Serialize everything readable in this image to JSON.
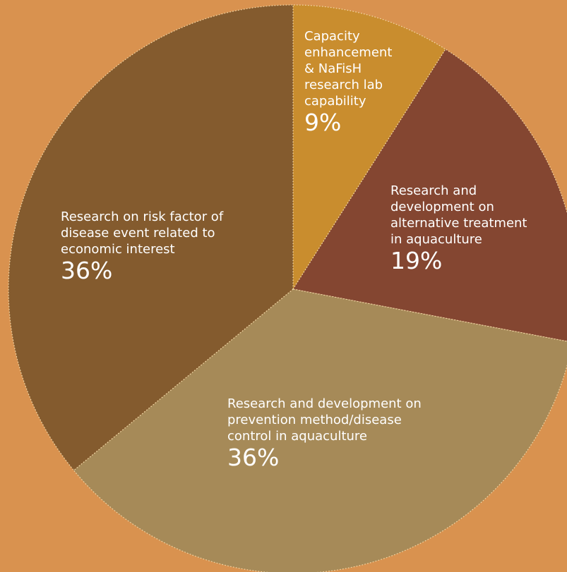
{
  "colors": {
    "background": "#D9924F",
    "border": "#F2D7A6"
  },
  "chart_data": {
    "type": "pie",
    "title": "",
    "slices": [
      {
        "label": "Capacity\nenhancement\n& NaFisH\nresearch lab\ncapability",
        "value": 9,
        "value_label": "9%",
        "color": "#C98D2E"
      },
      {
        "label": "Research and\ndevelopment on\nalternative treatment\nin aquaculture",
        "value": 19,
        "value_label": "19%",
        "color": "#844631"
      },
      {
        "label": "Research and development on\nprevention method/disease\ncontrol in aquaculture",
        "value": 36,
        "value_label": "36%",
        "color": "#A68A58"
      },
      {
        "label": "Research on risk factor of\ndisease event related to\neconomic interest",
        "value": 36,
        "value_label": "36%",
        "color": "#845B2E"
      }
    ]
  }
}
